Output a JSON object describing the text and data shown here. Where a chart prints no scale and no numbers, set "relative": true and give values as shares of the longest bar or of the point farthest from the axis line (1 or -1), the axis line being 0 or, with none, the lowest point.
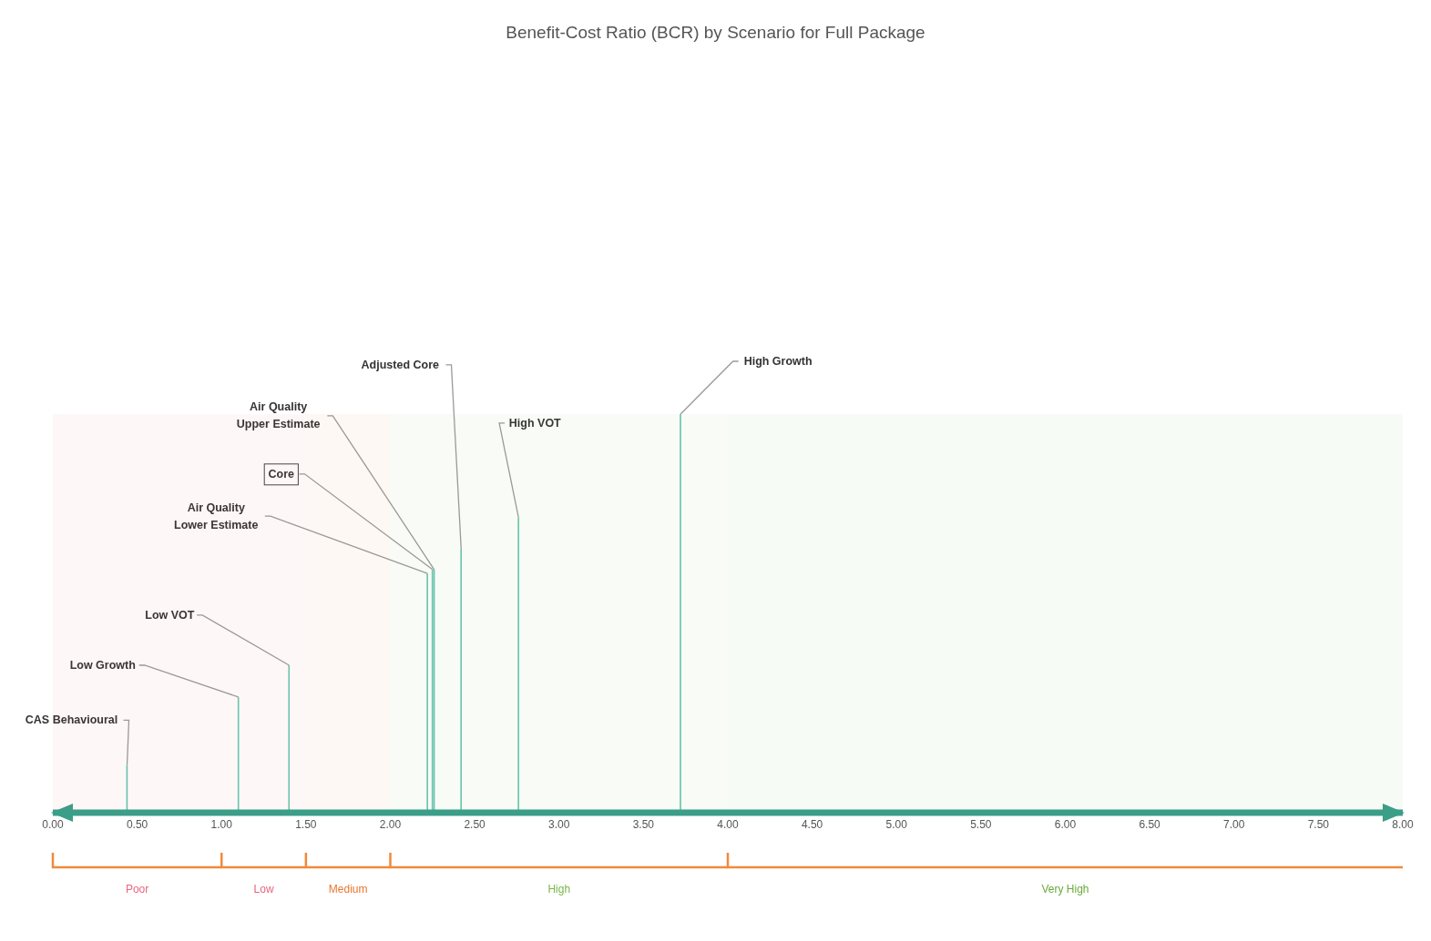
{
  "chart_data": {
    "type": "bar",
    "title": "Benefit-Cost Ratio (BCR) by Scenario for Full Package",
    "relative": true,
    "x": [
      0.44,
      1.1,
      1.4,
      2.22,
      2.25,
      2.26,
      2.42,
      2.76,
      3.72
    ],
    "values": [
      0.12,
      0.29,
      0.37,
      0.6,
      0.61,
      0.61,
      0.66,
      0.74,
      1
    ],
    "color": "#6cc4ae",
    "xlim": [
      0,
      8
    ],
    "xticks": [
      {
        "value": 0,
        "label": "0.00"
      },
      {
        "value": 0.5,
        "label": "0.50"
      },
      {
        "value": 1,
        "label": "1.00"
      },
      {
        "value": 1.5,
        "label": "1.50"
      },
      {
        "value": 2,
        "label": "2.00"
      },
      {
        "value": 2.5,
        "label": "2.50"
      },
      {
        "value": 3,
        "label": "3.00"
      },
      {
        "value": 3.5,
        "label": "3.50"
      },
      {
        "value": 4,
        "label": "4.00"
      },
      {
        "value": 4.5,
        "label": "4.50"
      },
      {
        "value": 5,
        "label": "5.00"
      },
      {
        "value": 5.5,
        "label": "5.50"
      },
      {
        "value": 6,
        "label": "6.00"
      },
      {
        "value": 6.5,
        "label": "6.50"
      },
      {
        "value": 7,
        "label": "7.00"
      },
      {
        "value": 7.5,
        "label": "7.50"
      },
      {
        "value": 8,
        "label": "8.00"
      }
    ],
    "annotations": [
      {
        "text": "CAS Behavioural",
        "x": 0.44,
        "y": 0.12
      },
      {
        "text": "Low Growth",
        "x": 1.1,
        "y": 0.29
      },
      {
        "text": "Low VOT",
        "x": 1.4,
        "y": 0.37
      },
      {
        "text": "Air Quality Lower Estimate",
        "x": 2.22,
        "y": 0.6
      },
      {
        "text": "Core",
        "x": 2.25,
        "y": 0.61
      },
      {
        "text": "Air Quality Upper Estimate",
        "x": 2.26,
        "y": 0.61
      },
      {
        "text": "Adjusted Core",
        "x": 2.42,
        "y": 0.66
      },
      {
        "text": "High VOT",
        "x": 2.76,
        "y": 0.74
      },
      {
        "text": "High Growth",
        "x": 3.72,
        "y": 1
      }
    ],
    "bands": [
      {
        "axis": "x",
        "from": 0,
        "to": 1,
        "label": "Poor",
        "color": "#e8657f"
      },
      {
        "axis": "x",
        "from": 1,
        "to": 1.5,
        "label": "Low",
        "color": "#e8657f"
      },
      {
        "axis": "x",
        "from": 1.5,
        "to": 2,
        "label": "Medium",
        "color": "#e8772e"
      },
      {
        "axis": "x",
        "from": 2,
        "to": 4,
        "label": "High",
        "color": "#7ab648"
      },
      {
        "axis": "x",
        "from": 4,
        "to": 8,
        "label": "Very High",
        "color": "#6aaa3a"
      }
    ],
    "grid": false,
    "legend": false
  }
}
